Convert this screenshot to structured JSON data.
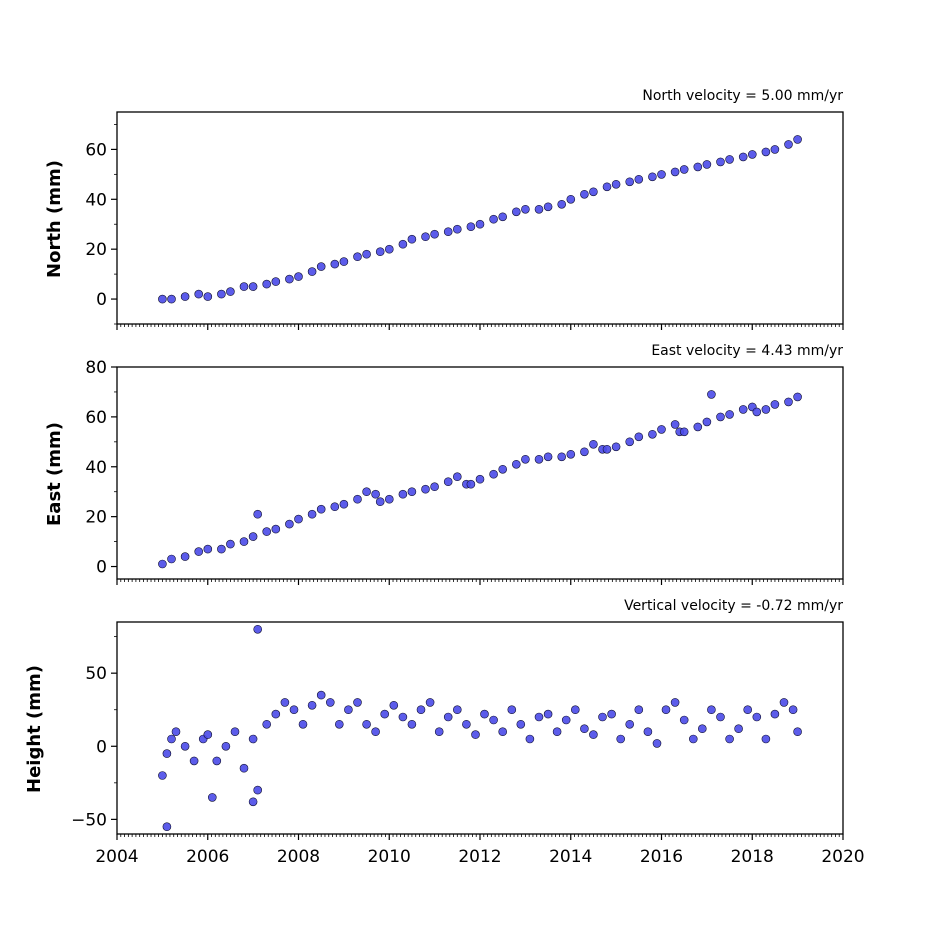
{
  "figure": {
    "x_ticks": [
      "2004",
      "2006",
      "2008",
      "2010",
      "2012",
      "2014",
      "2016",
      "2018",
      "2020"
    ],
    "colors": {
      "marker_fill": "#4a4ae8",
      "marker_edge": "#101030",
      "axis": "#000000"
    }
  },
  "chart_data": [
    {
      "type": "scatter",
      "title": "North velocity = 5.00 mm/yr",
      "xlabel": "",
      "ylabel": "North (mm)",
      "xlim": [
        2004,
        2020
      ],
      "ylim": [
        -10,
        75
      ],
      "y_ticks": [
        "0",
        "20",
        "40",
        "60"
      ],
      "y_tick_values": [
        0,
        20,
        40,
        60
      ],
      "grid": false,
      "series": [
        {
          "x": [
            2005.0,
            2005.2,
            2005.5,
            2005.8,
            2006.0,
            2006.3,
            2006.5,
            2006.8,
            2007.0,
            2007.3,
            2007.5,
            2007.8,
            2008.0,
            2008.3,
            2008.5,
            2008.8,
            2009.0,
            2009.3,
            2009.5,
            2009.8,
            2010.0,
            2010.3,
            2010.5,
            2010.8,
            2011.0,
            2011.3,
            2011.5,
            2011.8,
            2012.0,
            2012.3,
            2012.5,
            2012.8,
            2013.0,
            2013.3,
            2013.5,
            2013.8,
            2014.0,
            2014.3,
            2014.5,
            2014.8,
            2015.0,
            2015.3,
            2015.5,
            2015.8,
            2016.0,
            2016.3,
            2016.5,
            2016.8,
            2017.0,
            2017.3,
            2017.5,
            2017.8,
            2018.0,
            2018.3,
            2018.5,
            2018.8,
            2019.0
          ],
          "y": [
            0,
            0,
            1,
            2,
            1,
            2,
            3,
            5,
            5,
            6,
            7,
            8,
            9,
            11,
            13,
            14,
            15,
            17,
            18,
            19,
            20,
            22,
            24,
            25,
            26,
            27,
            28,
            29,
            30,
            32,
            33,
            35,
            36,
            36,
            37,
            38,
            40,
            42,
            43,
            45,
            46,
            47,
            48,
            49,
            50,
            51,
            52,
            53,
            54,
            55,
            56,
            57,
            58,
            59,
            60,
            62,
            64
          ]
        }
      ]
    },
    {
      "type": "scatter",
      "title": "East velocity = 4.43 mm/yr",
      "xlabel": "",
      "ylabel": "East (mm)",
      "xlim": [
        2004,
        2020
      ],
      "ylim": [
        -5,
        80
      ],
      "y_ticks": [
        "0",
        "20",
        "40",
        "60",
        "80"
      ],
      "y_tick_values": [
        0,
        20,
        40,
        60,
        80
      ],
      "grid": false,
      "series": [
        {
          "x": [
            2005.0,
            2005.2,
            2005.5,
            2005.8,
            2006.0,
            2006.3,
            2006.5,
            2006.8,
            2007.0,
            2007.3,
            2007.5,
            2007.8,
            2008.0,
            2008.3,
            2008.5,
            2008.8,
            2009.0,
            2009.3,
            2009.5,
            2009.7,
            2009.8,
            2010.0,
            2010.3,
            2010.5,
            2010.8,
            2011.0,
            2011.3,
            2011.5,
            2011.7,
            2011.8,
            2012.0,
            2012.3,
            2012.5,
            2012.8,
            2013.0,
            2013.3,
            2013.5,
            2013.8,
            2014.0,
            2014.3,
            2014.5,
            2014.7,
            2014.8,
            2015.0,
            2015.3,
            2015.5,
            2015.8,
            2016.0,
            2016.3,
            2016.4,
            2016.5,
            2016.8,
            2017.0,
            2017.3,
            2017.5,
            2017.8,
            2018.0,
            2018.1,
            2018.3,
            2018.5,
            2018.8,
            2019.0,
            2007.1,
            2017.1
          ],
          "y": [
            1,
            3,
            4,
            6,
            7,
            7,
            9,
            10,
            12,
            14,
            15,
            17,
            19,
            21,
            23,
            24,
            25,
            27,
            30,
            29,
            26,
            27,
            29,
            30,
            31,
            32,
            34,
            36,
            33,
            33,
            35,
            37,
            39,
            41,
            43,
            43,
            44,
            44,
            45,
            46,
            49,
            47,
            47,
            48,
            50,
            52,
            53,
            55,
            57,
            54,
            54,
            56,
            58,
            60,
            61,
            63,
            64,
            62,
            63,
            65,
            66,
            68,
            21,
            69
          ]
        }
      ]
    },
    {
      "type": "scatter",
      "title": "Vertical velocity = -0.72 mm/yr",
      "xlabel": "",
      "ylabel": "Height (mm)",
      "xlim": [
        2004,
        2020
      ],
      "ylim": [
        -60,
        85
      ],
      "y_ticks": [
        "50",
        "0",
        "−50"
      ],
      "y_tick_values": [
        50,
        0,
        -50
      ],
      "grid": false,
      "series": [
        {
          "x": [
            2005.0,
            2005.1,
            2005.2,
            2005.3,
            2005.5,
            2005.7,
            2005.9,
            2006.0,
            2006.2,
            2006.4,
            2006.6,
            2006.8,
            2007.0,
            2007.1,
            2007.3,
            2007.5,
            2007.7,
            2007.9,
            2008.1,
            2008.3,
            2008.5,
            2008.7,
            2008.9,
            2009.1,
            2009.3,
            2009.5,
            2009.7,
            2009.9,
            2010.1,
            2010.3,
            2010.5,
            2010.7,
            2010.9,
            2011.1,
            2011.3,
            2011.5,
            2011.7,
            2011.9,
            2012.1,
            2012.3,
            2012.5,
            2012.7,
            2012.9,
            2013.1,
            2013.3,
            2013.5,
            2013.7,
            2013.9,
            2014.1,
            2014.3,
            2014.5,
            2014.7,
            2014.9,
            2015.1,
            2015.3,
            2015.5,
            2015.7,
            2015.9,
            2016.1,
            2016.3,
            2016.5,
            2016.7,
            2016.9,
            2017.1,
            2017.3,
            2017.5,
            2017.7,
            2017.9,
            2018.1,
            2018.3,
            2018.5,
            2018.7,
            2018.9,
            2019.0,
            2005.1,
            2006.1,
            2007.1,
            2007.0
          ],
          "y": [
            -20,
            -5,
            5,
            10,
            0,
            -10,
            5,
            8,
            -10,
            0,
            10,
            -15,
            5,
            -30,
            15,
            22,
            30,
            25,
            15,
            28,
            35,
            30,
            15,
            25,
            30,
            15,
            10,
            22,
            28,
            20,
            15,
            25,
            30,
            10,
            20,
            25,
            15,
            8,
            22,
            18,
            10,
            25,
            15,
            5,
            20,
            22,
            10,
            18,
            25,
            12,
            8,
            20,
            22,
            5,
            15,
            25,
            10,
            2,
            25,
            30,
            18,
            5,
            12,
            25,
            20,
            5,
            12,
            25,
            20,
            5,
            22,
            30,
            25,
            10,
            -55,
            -35,
            80,
            -38
          ]
        }
      ]
    }
  ]
}
